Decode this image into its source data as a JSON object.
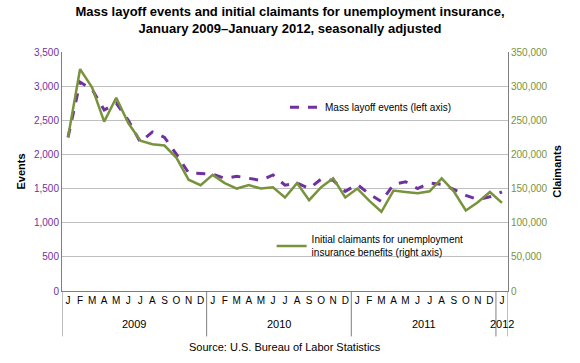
{
  "chart_data": {
    "type": "line",
    "title": "Mass layoff events and initial claimants for unemployment insurance,\nJanuary 2009–January 2012, seasonally adjusted",
    "y_label": "Events",
    "y2_label": "Claimants",
    "source": "Source: U.S. Bureau of Labor Statistics",
    "categories": [
      "J",
      "F",
      "M",
      "A",
      "M",
      "J",
      "J",
      "A",
      "S",
      "O",
      "N",
      "D",
      "J",
      "F",
      "M",
      "A",
      "M",
      "J",
      "J",
      "A",
      "S",
      "O",
      "N",
      "D",
      "J",
      "F",
      "M",
      "A",
      "M",
      "J",
      "J",
      "A",
      "S",
      "O",
      "N",
      "D",
      "J"
    ],
    "category_groups": [
      {
        "label": "2009",
        "count": 12
      },
      {
        "label": "2010",
        "count": 12
      },
      {
        "label": "2011",
        "count": 12
      },
      {
        "label": "2012",
        "count": 1
      }
    ],
    "series": [
      {
        "name": "Mass layoff events (left axis)",
        "color": "#7030a0",
        "line_style": "dashed",
        "axis": "y",
        "values": [
          2250,
          3060,
          2950,
          2650,
          2750,
          2500,
          2180,
          2330,
          2250,
          2000,
          1730,
          1720,
          1710,
          1650,
          1680,
          1650,
          1620,
          1700,
          1550,
          1580,
          1500,
          1640,
          1620,
          1460,
          1560,
          1420,
          1310,
          1560,
          1600,
          1500,
          1580,
          1560,
          1490,
          1400,
          1340,
          1380,
          1450
        ]
      },
      {
        "name": "Initial claimants for unemployment insurance benefits (right axis)",
        "color": "#77933c",
        "line_style": "solid",
        "axis": "y2",
        "values": [
          225000,
          325000,
          298000,
          248000,
          283000,
          246000,
          220000,
          215000,
          213000,
          195000,
          163000,
          155000,
          170000,
          158000,
          150000,
          155000,
          150000,
          152000,
          137000,
          158000,
          133000,
          152000,
          165000,
          137000,
          150000,
          132000,
          116000,
          147000,
          145000,
          143000,
          146000,
          165000,
          146000,
          118000,
          130000,
          145000,
          129000
        ]
      }
    ],
    "ylim": [
      0,
      3500
    ],
    "yticks": [
      0,
      500,
      {
        "value": 1000,
        "label": "1,000"
      },
      {
        "value": 1500,
        "label": "1,500"
      },
      {
        "value": 2000,
        "label": "2,000"
      },
      {
        "value": 2500,
        "label": "2,500"
      },
      {
        "value": 3000,
        "label": "3,000"
      },
      {
        "value": 3500,
        "label": "3,500"
      }
    ],
    "y2lim": [
      0,
      350000
    ],
    "y2ticks": [
      0,
      {
        "value": 50000,
        "label": "50,000"
      },
      {
        "value": 100000,
        "label": "100,000"
      },
      {
        "value": 150000,
        "label": "150,000"
      },
      {
        "value": 200000,
        "label": "200,000"
      },
      {
        "value": 250000,
        "label": "250,000"
      },
      {
        "value": 300000,
        "label": "300,000"
      },
      {
        "value": 350000,
        "label": "350,000"
      }
    ],
    "grid": true
  }
}
